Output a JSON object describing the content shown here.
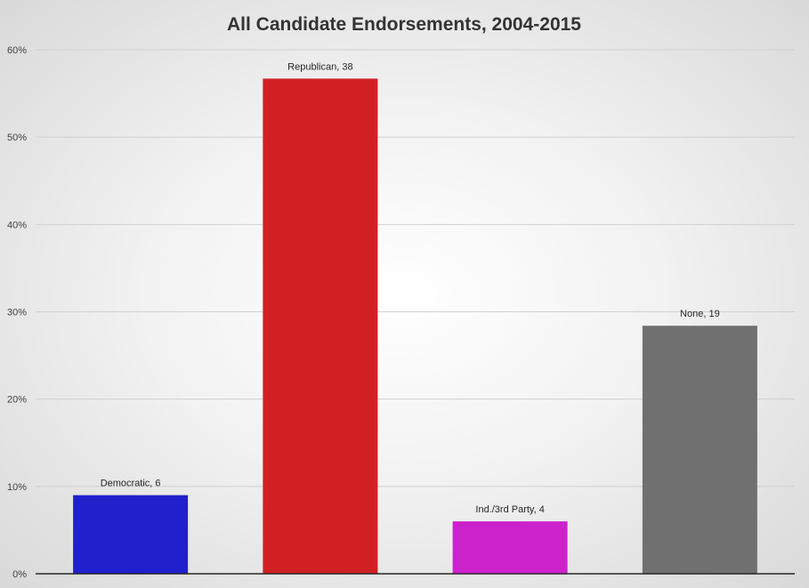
{
  "chart_data": {
    "type": "bar",
    "title": "All Candidate Endorsements, 2004-2015",
    "xlabel": "",
    "ylabel": "",
    "categories": [
      "Democratic",
      "Republican",
      "Ind./3rd Party",
      "None"
    ],
    "values": [
      9.0,
      56.7,
      6.0,
      28.4
    ],
    "value_unit": "%",
    "data_labels": [
      "Democratic, 6",
      "Republican, 38",
      "Ind./3rd Party, 4",
      "None, 19"
    ],
    "counts": [
      6,
      38,
      4,
      19
    ],
    "colors": [
      "#2020cc",
      "#d12023",
      "#cc22cc",
      "#707070"
    ],
    "ylim": [
      0,
      60
    ],
    "yticks": [
      0,
      10,
      20,
      30,
      40,
      50,
      60
    ],
    "ytick_labels": [
      "0%",
      "10%",
      "20%",
      "30%",
      "40%",
      "50%",
      "60%"
    ],
    "grid": true,
    "legend": "none"
  }
}
